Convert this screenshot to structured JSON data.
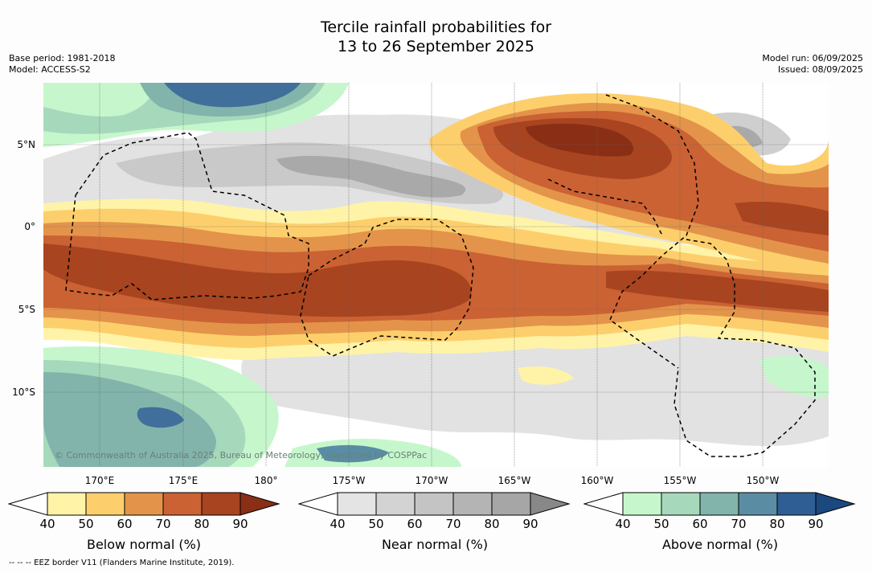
{
  "title": {
    "line1": "Tercile rainfall probabilities for",
    "line2": "13 to 26 September 2025"
  },
  "meta_left": {
    "base_period": "Base period: 1981-2018",
    "model": "Model: ACCESS-S2"
  },
  "meta_right": {
    "model_run": "Model run: 06/09/2025",
    "issued": "Issued: 08/09/2025"
  },
  "map": {
    "lat_labels": [
      "5°N",
      "0°",
      "5°S",
      "10°S"
    ],
    "lon_labels": [
      "170°E",
      "175°E",
      "180°",
      "175°W",
      "170°W",
      "165°W",
      "160°W",
      "155°W",
      "150°W"
    ],
    "credit": "© Commonwealth of Australia 2025, Bureau of Meteorology, supported by COSPPac"
  },
  "legend": {
    "below": {
      "title": "Below normal (%)",
      "colors": [
        "#fff3a8",
        "#fdcf6c",
        "#e3944a",
        "#cb6233",
        "#a8441f",
        "#8a2e16"
      ]
    },
    "near": {
      "title": "Near normal (%)",
      "colors": [
        "#e4e4e4",
        "#d3d3d3",
        "#c4c4c4",
        "#b4b4b4",
        "#a6a6a6",
        "#888888"
      ]
    },
    "above": {
      "title": "Above normal (%)",
      "colors": [
        "#c6f7cc",
        "#a6d9bb",
        "#82b4ac",
        "#5a8da3",
        "#2f5e94",
        "#1c4880"
      ]
    },
    "ticks": [
      "40",
      "50",
      "60",
      "70",
      "80",
      "90"
    ]
  },
  "footnote": "--  --  -- EEZ border V11 (Flanders Marine Institute, 2019)."
}
